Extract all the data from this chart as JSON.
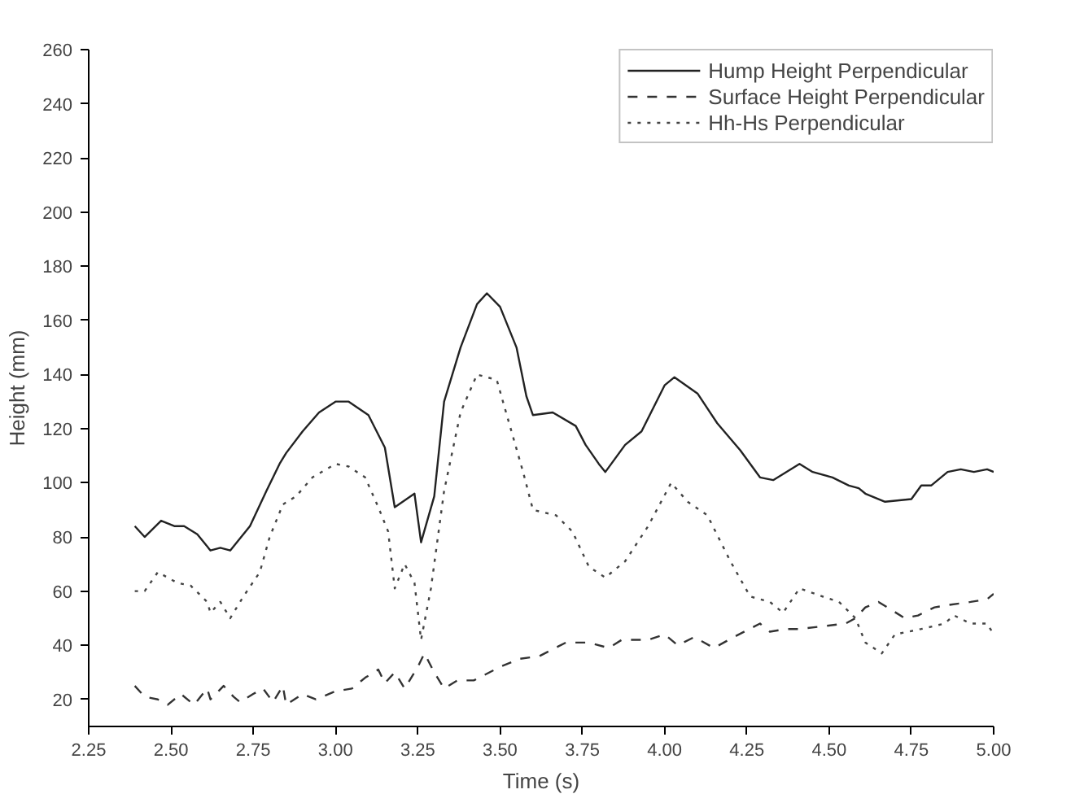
{
  "chart_data": {
    "type": "line",
    "xlabel": "Time (s)",
    "ylabel": "Height (mm)",
    "xlim": [
      2.25,
      5.0
    ],
    "ylim": [
      10,
      260
    ],
    "xticks": [
      {
        "value": 2.25,
        "label": "2.25"
      },
      {
        "value": 2.5,
        "label": "2.50"
      },
      {
        "value": 2.75,
        "label": "2.75"
      },
      {
        "value": 3.0,
        "label": "3.00"
      },
      {
        "value": 3.25,
        "label": "3.25"
      },
      {
        "value": 3.5,
        "label": "3.50"
      },
      {
        "value": 3.75,
        "label": "3.75"
      },
      {
        "value": 4.0,
        "label": "4.00"
      },
      {
        "value": 4.25,
        "label": "4.25"
      },
      {
        "value": 4.5,
        "label": "4.50"
      },
      {
        "value": 4.75,
        "label": "4.75"
      },
      {
        "value": 5.0,
        "label": "5.00"
      }
    ],
    "yticks": [
      20,
      40,
      60,
      80,
      100,
      120,
      140,
      160,
      180,
      200,
      220,
      240,
      260
    ],
    "grid": false,
    "legend": "top right",
    "series": [
      {
        "name": "Hump Height Perpendicular",
        "color": "#222222",
        "line_style": "solid",
        "x": [
          2.39,
          2.42,
          2.47,
          2.51,
          2.54,
          2.58,
          2.62,
          2.65,
          2.68,
          2.7,
          2.74,
          2.79,
          2.83,
          2.85,
          2.9,
          2.95,
          3.0,
          3.04,
          3.1,
          3.15,
          3.18,
          3.24,
          3.26,
          3.3,
          3.33,
          3.38,
          3.43,
          3.46,
          3.5,
          3.55,
          3.58,
          3.6,
          3.66,
          3.73,
          3.76,
          3.8,
          3.82,
          3.88,
          3.93,
          4.0,
          4.03,
          4.1,
          4.16,
          4.23,
          4.29,
          4.33,
          4.41,
          4.45,
          4.51,
          4.56,
          4.59,
          4.61,
          4.67,
          4.75,
          4.78,
          4.81,
          4.86,
          4.9,
          4.94,
          4.98,
          5.0
        ],
        "values": [
          84,
          80,
          86,
          84,
          84,
          81,
          75,
          76,
          75,
          78,
          84,
          97,
          107,
          111,
          119,
          126,
          130,
          130,
          125,
          113,
          91,
          96,
          78,
          95,
          130,
          150,
          166,
          170,
          165,
          150,
          132,
          125,
          126,
          121,
          114,
          107,
          104,
          114,
          119,
          136,
          139,
          133,
          122,
          112,
          102,
          101,
          107,
          104,
          102,
          99,
          98,
          96,
          93,
          94,
          99,
          99,
          104,
          105,
          104,
          105,
          104
        ]
      },
      {
        "name": "Surface Height Perpendicular",
        "color": "#333333",
        "line_style": "dashed",
        "x": [
          2.39,
          2.42,
          2.46,
          2.49,
          2.53,
          2.57,
          2.61,
          2.62,
          2.66,
          2.69,
          2.71,
          2.75,
          2.78,
          2.81,
          2.84,
          2.85,
          2.9,
          2.94,
          3.0,
          3.05,
          3.09,
          3.13,
          3.15,
          3.18,
          3.21,
          3.25,
          3.27,
          3.3,
          3.33,
          3.37,
          3.42,
          3.5,
          3.56,
          3.62,
          3.7,
          3.77,
          3.83,
          3.87,
          3.95,
          4.0,
          4.04,
          4.09,
          4.15,
          4.21,
          4.29,
          4.32,
          4.37,
          4.41,
          4.48,
          4.55,
          4.58,
          4.61,
          4.65,
          4.69,
          4.73,
          4.77,
          4.82,
          4.87,
          4.93,
          4.98,
          5.0
        ],
        "values": [
          25,
          21,
          20,
          18,
          22,
          18,
          24,
          20,
          25,
          21,
          19,
          22,
          24,
          19,
          25,
          18,
          22,
          20,
          23,
          24,
          28,
          31,
          26,
          30,
          24,
          32,
          37,
          30,
          24,
          27,
          27,
          32,
          35,
          36,
          41,
          41,
          39,
          42,
          42,
          44,
          40,
          43,
          39,
          43,
          48,
          45,
          46,
          46,
          47,
          48,
          50,
          54,
          56,
          53,
          50,
          51,
          54,
          55,
          56,
          57,
          59
        ]
      },
      {
        "name": "Hh-Hs Perpendicular",
        "color": "#444444",
        "line_style": "dotted",
        "x": [
          2.39,
          2.42,
          2.46,
          2.52,
          2.56,
          2.61,
          2.62,
          2.65,
          2.68,
          2.72,
          2.77,
          2.8,
          2.84,
          2.88,
          2.93,
          3.0,
          3.04,
          3.09,
          3.13,
          3.16,
          3.18,
          3.21,
          3.24,
          3.26,
          3.29,
          3.33,
          3.38,
          3.43,
          3.49,
          3.53,
          3.57,
          3.6,
          3.67,
          3.72,
          3.77,
          3.82,
          3.88,
          3.95,
          4.02,
          4.07,
          4.13,
          4.2,
          4.26,
          4.32,
          4.36,
          4.41,
          4.48,
          4.53,
          4.58,
          4.61,
          4.66,
          4.7,
          4.78,
          4.85,
          4.88,
          4.93,
          4.98,
          5.0
        ],
        "values": [
          60,
          60,
          67,
          63,
          62,
          56,
          52,
          56,
          50,
          58,
          67,
          80,
          92,
          95,
          102,
          107,
          106,
          102,
          91,
          82,
          61,
          70,
          63,
          42,
          61,
          97,
          126,
          140,
          138,
          121,
          104,
          90,
          88,
          82,
          69,
          65,
          71,
          84,
          100,
          93,
          88,
          71,
          58,
          56,
          52,
          61,
          58,
          56,
          50,
          41,
          37,
          44,
          46,
          48,
          51,
          48,
          48,
          44
        ]
      }
    ]
  }
}
